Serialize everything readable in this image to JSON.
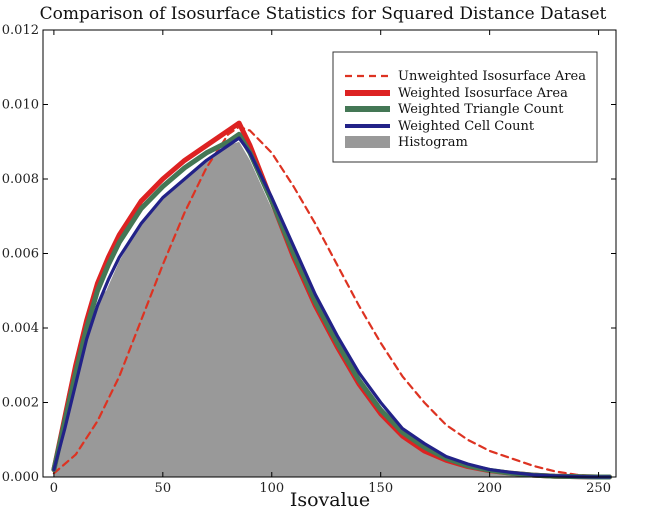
{
  "chart_data": {
    "type": "line",
    "title": "Comparison of Isosurface Statistics for Squared Distance Dataset",
    "xlabel": "Isovalue",
    "ylabel": "",
    "xlim": [
      -5,
      258
    ],
    "ylim": [
      0,
      0.012
    ],
    "xticks": [
      0,
      50,
      100,
      150,
      200,
      250
    ],
    "xtick_labels": [
      "0",
      "50",
      "100",
      "150",
      "200",
      "250"
    ],
    "yticks": [
      0,
      0.002,
      0.004,
      0.006,
      0.008,
      0.01,
      0.012
    ],
    "ytick_labels": [
      "0.000",
      "0.002",
      "0.004",
      "0.006",
      "0.008",
      "0.010",
      "0.012"
    ],
    "grid": false,
    "legend_position": "top-right",
    "histogram": {
      "name": "Histogram",
      "color": "#999999",
      "x": [
        0,
        2,
        4,
        6,
        8,
        10,
        12,
        14,
        16,
        18,
        20,
        22,
        24,
        30,
        40,
        50,
        60,
        70,
        80,
        85,
        90,
        100,
        110,
        120,
        130,
        140,
        150,
        160,
        170,
        180,
        190,
        200,
        210,
        220,
        230,
        240,
        250,
        255
      ],
      "values": [
        0.0002,
        0.0009,
        0.0015,
        0.0022,
        0.0027,
        0.0031,
        0.0035,
        0.0038,
        0.0041,
        0.0044,
        0.0047,
        0.0049,
        0.005,
        0.0058,
        0.0068,
        0.0075,
        0.008,
        0.0085,
        0.0089,
        0.009,
        0.0085,
        0.0072,
        0.0059,
        0.0047,
        0.0036,
        0.0026,
        0.0018,
        0.0012,
        0.0008,
        0.0005,
        0.0003,
        0.00018,
        0.0001,
        5e-05,
        2e-05,
        1e-05,
        0.0,
        0.0
      ]
    },
    "series": [
      {
        "name": "Unweighted Isosurface Area",
        "color": "#dd3322",
        "style": "dashed",
        "x": [
          0,
          10,
          20,
          30,
          40,
          50,
          60,
          70,
          80,
          85,
          90,
          100,
          110,
          120,
          130,
          140,
          150,
          160,
          170,
          175,
          180,
          190,
          200,
          210,
          220,
          230,
          240,
          250,
          255
        ],
        "values": [
          0.0001,
          0.0006,
          0.0015,
          0.0027,
          0.0042,
          0.0057,
          0.0071,
          0.0083,
          0.0092,
          0.0094,
          0.0093,
          0.0087,
          0.0078,
          0.0068,
          0.0057,
          0.0046,
          0.0036,
          0.0027,
          0.002,
          0.0017,
          0.0014,
          0.001,
          0.0007,
          0.0005,
          0.0003,
          0.00015,
          6e-05,
          1e-05,
          0.0
        ]
      },
      {
        "name": "Weighted Isosurface Area",
        "color": "#dd2222",
        "style": "solid",
        "x": [
          0,
          5,
          10,
          15,
          20,
          25,
          30,
          40,
          50,
          60,
          70,
          80,
          85,
          90,
          100,
          110,
          120,
          130,
          140,
          150,
          160,
          170,
          180,
          190,
          200,
          210,
          220,
          230,
          240,
          250,
          255
        ],
        "values": [
          0.0002,
          0.0016,
          0.003,
          0.0042,
          0.0052,
          0.0059,
          0.0065,
          0.0074,
          0.008,
          0.0085,
          0.0089,
          0.0093,
          0.0095,
          0.0089,
          0.0074,
          0.0059,
          0.0046,
          0.0035,
          0.0025,
          0.0017,
          0.0011,
          0.0007,
          0.00045,
          0.00028,
          0.00017,
          0.0001,
          5e-05,
          2e-05,
          1e-05,
          0.0,
          0.0
        ]
      },
      {
        "name": "Weighted Triangle Count",
        "color": "#447755",
        "style": "solid",
        "x": [
          0,
          5,
          10,
          15,
          20,
          25,
          30,
          40,
          50,
          60,
          70,
          80,
          85,
          90,
          100,
          110,
          120,
          130,
          140,
          150,
          160,
          170,
          180,
          190,
          200,
          210,
          220,
          230,
          240,
          250,
          255
        ],
        "values": [
          0.0002,
          0.0015,
          0.0028,
          0.004,
          0.005,
          0.0057,
          0.0063,
          0.0072,
          0.0078,
          0.0083,
          0.0087,
          0.009,
          0.0092,
          0.0087,
          0.0074,
          0.006,
          0.0047,
          0.0036,
          0.0026,
          0.0018,
          0.0012,
          0.0008,
          0.0005,
          0.0003,
          0.00018,
          0.0001,
          5e-05,
          2e-05,
          1e-05,
          0.0,
          0.0
        ]
      },
      {
        "name": "Weighted Cell Count",
        "color": "#222288",
        "style": "solid",
        "x": [
          0,
          5,
          10,
          15,
          20,
          25,
          30,
          40,
          50,
          60,
          70,
          80,
          85,
          90,
          100,
          110,
          120,
          130,
          140,
          150,
          160,
          170,
          180,
          190,
          200,
          210,
          220,
          230,
          240,
          250,
          255
        ],
        "values": [
          0.0002,
          0.0013,
          0.0025,
          0.0037,
          0.0046,
          0.0053,
          0.0059,
          0.0068,
          0.0075,
          0.008,
          0.0085,
          0.0089,
          0.0091,
          0.0087,
          0.0075,
          0.0062,
          0.0049,
          0.0038,
          0.0028,
          0.002,
          0.0013,
          0.0009,
          0.00055,
          0.00035,
          0.0002,
          0.00012,
          6e-05,
          3e-05,
          1e-05,
          0.0,
          0.0
        ]
      }
    ],
    "legend_entries": [
      "Unweighted Isosurface Area",
      "Weighted Isosurface Area",
      "Weighted Triangle Count",
      "Weighted Cell Count",
      "Histogram"
    ]
  }
}
